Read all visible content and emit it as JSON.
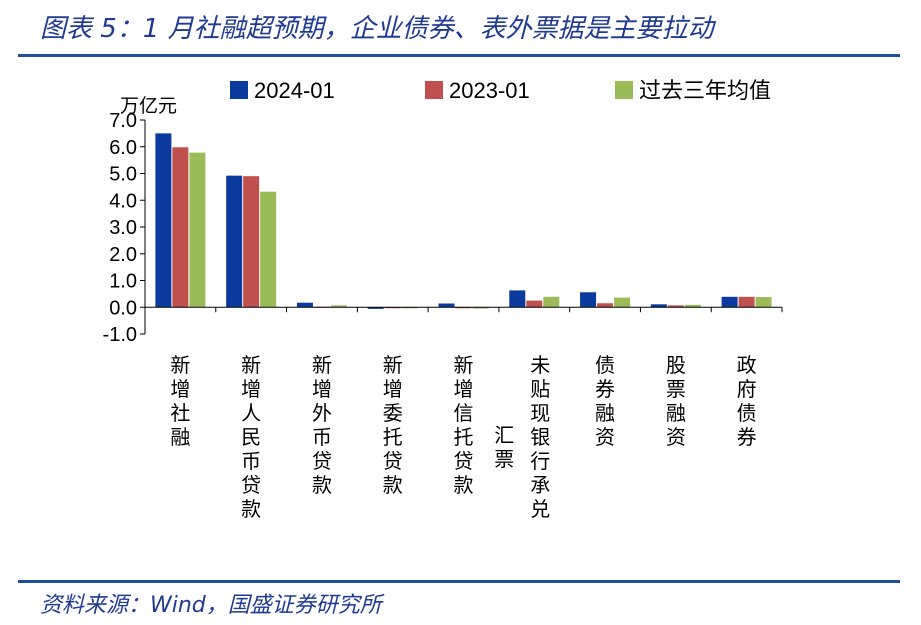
{
  "header": {
    "title": "图表 5：1 月社融超预期，企业债券、表外票据是主要拉动"
  },
  "footer": {
    "source": "资料来源：Wind，国盛证券研究所"
  },
  "chart_data": {
    "type": "bar",
    "ylabel": "万亿元",
    "ylim": [
      -1.0,
      7.0
    ],
    "yticks": [
      "7.0",
      "6.0",
      "5.0",
      "4.0",
      "3.0",
      "2.0",
      "1.0",
      "0.0",
      "-1.0"
    ],
    "legend_position": "top",
    "categories": [
      "新增社融",
      "新增人民币贷款",
      "新增外币贷款",
      "新增委托贷款",
      "新增信托贷款",
      "未贴现银行承兑汇票",
      "债券融资",
      "股票融资",
      "政府债券"
    ],
    "series": [
      {
        "name": "2024-01",
        "color": "#0b3a9e",
        "values": [
          6.5,
          4.92,
          0.17,
          -0.06,
          0.14,
          0.63,
          0.56,
          0.11,
          0.39
        ]
      },
      {
        "name": "2023-01",
        "color": "#c0504d",
        "values": [
          5.98,
          4.9,
          0.02,
          -0.01,
          -0.01,
          0.25,
          0.15,
          0.07,
          0.39
        ]
      },
      {
        "name": "过去三年均值",
        "color": "#9bbb59",
        "values": [
          5.78,
          4.32,
          0.07,
          -0.04,
          -0.05,
          0.39,
          0.36,
          0.09,
          0.38
        ]
      }
    ]
  }
}
